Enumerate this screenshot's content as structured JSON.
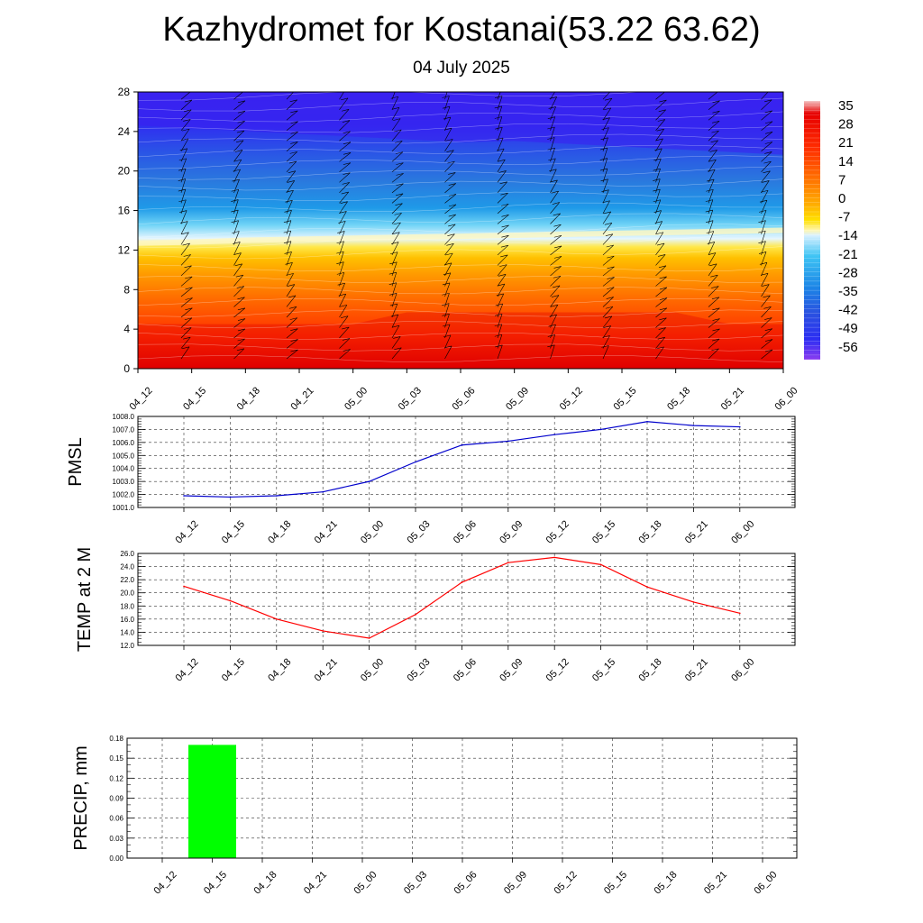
{
  "header": {
    "title": "Kazhydromet for Kostanai(53.22 63.62)",
    "subtitle": "04 July 2025"
  },
  "time_labels": [
    "04_12",
    "04_15",
    "04_18",
    "04_21",
    "05_00",
    "05_03",
    "05_06",
    "05_09",
    "05_12",
    "05_15",
    "05_18",
    "05_21",
    "06_00"
  ],
  "chart_data": [
    {
      "type": "heatmap",
      "name": "temperature-profile",
      "x": [
        "04_12",
        "04_15",
        "04_18",
        "04_21",
        "05_00",
        "05_03",
        "05_06",
        "05_09",
        "05_12",
        "05_15",
        "05_18",
        "05_21",
        "06_00"
      ],
      "ylim": [
        0,
        28
      ],
      "yticks": [
        0,
        4,
        8,
        12,
        16,
        20,
        24,
        28
      ],
      "zero_contour_level": [
        11.3,
        11.4,
        11.6,
        11.7,
        11.8,
        11.9,
        12.0,
        12.1,
        12.2,
        12.3,
        12.4,
        12.5,
        12.6
      ],
      "colorbar": {
        "labels": [
          "35",
          "28",
          "21",
          "14",
          "7",
          "0",
          "-7",
          "-14",
          "-21",
          "-28",
          "-35",
          "-42",
          "-49",
          "-56"
        ],
        "colors": [
          "#f4b4b4",
          "#e60000",
          "#ff3a00",
          "#ff7400",
          "#ffad00",
          "#ffd400",
          "#fff0a0",
          "#d9f1ff",
          "#2fc0f4",
          "#1f88e6",
          "#2464e0",
          "#2a3ff0",
          "#3f2ef5",
          "#7a3af0"
        ]
      },
      "wind_barbs": true
    },
    {
      "type": "line",
      "ylabel": "PMSL",
      "x": [
        "04_12",
        "04_15",
        "04_18",
        "04_21",
        "05_00",
        "05_03",
        "05_06",
        "05_09",
        "05_12",
        "05_15",
        "05_18",
        "05_21",
        "06_00"
      ],
      "values": [
        1001.9,
        1001.8,
        1001.9,
        1002.2,
        1003.0,
        1004.5,
        1005.8,
        1006.1,
        1006.6,
        1007.0,
        1007.6,
        1007.3,
        1007.2
      ],
      "ylim": [
        1001.0,
        1008.0
      ],
      "yticks": [
        "1001.0",
        "1002.0",
        "1003.0",
        "1004.0",
        "1005.0",
        "1006.0",
        "1007.0",
        "1008.0"
      ],
      "color": "#0000cc",
      "grid": true
    },
    {
      "type": "line",
      "ylabel": "TEMP at 2 M",
      "x": [
        "04_12",
        "04_15",
        "04_18",
        "04_21",
        "05_00",
        "05_03",
        "05_06",
        "05_09",
        "05_12",
        "05_15",
        "05_18",
        "05_21",
        "06_00"
      ],
      "values": [
        21.0,
        18.8,
        16.0,
        14.2,
        13.1,
        16.7,
        21.6,
        24.6,
        25.4,
        24.3,
        20.9,
        18.6,
        16.9
      ],
      "ylim": [
        12.0,
        26.0
      ],
      "yticks": [
        "12.0",
        "14.0",
        "16.0",
        "18.0",
        "20.0",
        "22.0",
        "24.0",
        "26.0"
      ],
      "color": "#ff0000",
      "grid": true
    },
    {
      "type": "bar",
      "ylabel": "PRECIP, mm",
      "categories": [
        "04_12",
        "04_15",
        "04_18",
        "04_21",
        "05_00",
        "05_03",
        "05_06",
        "05_09",
        "05_12",
        "05_15",
        "05_18",
        "05_21",
        "06_00"
      ],
      "values": [
        0,
        0.17,
        0,
        0,
        0,
        0,
        0,
        0,
        0,
        0,
        0,
        0,
        0
      ],
      "ylim": [
        0,
        0.18
      ],
      "yticks": [
        "0.00",
        "0.03",
        "0.06",
        "0.09",
        "0.12",
        "0.15",
        "0.18"
      ],
      "color": "#00ff00",
      "grid": true
    }
  ]
}
